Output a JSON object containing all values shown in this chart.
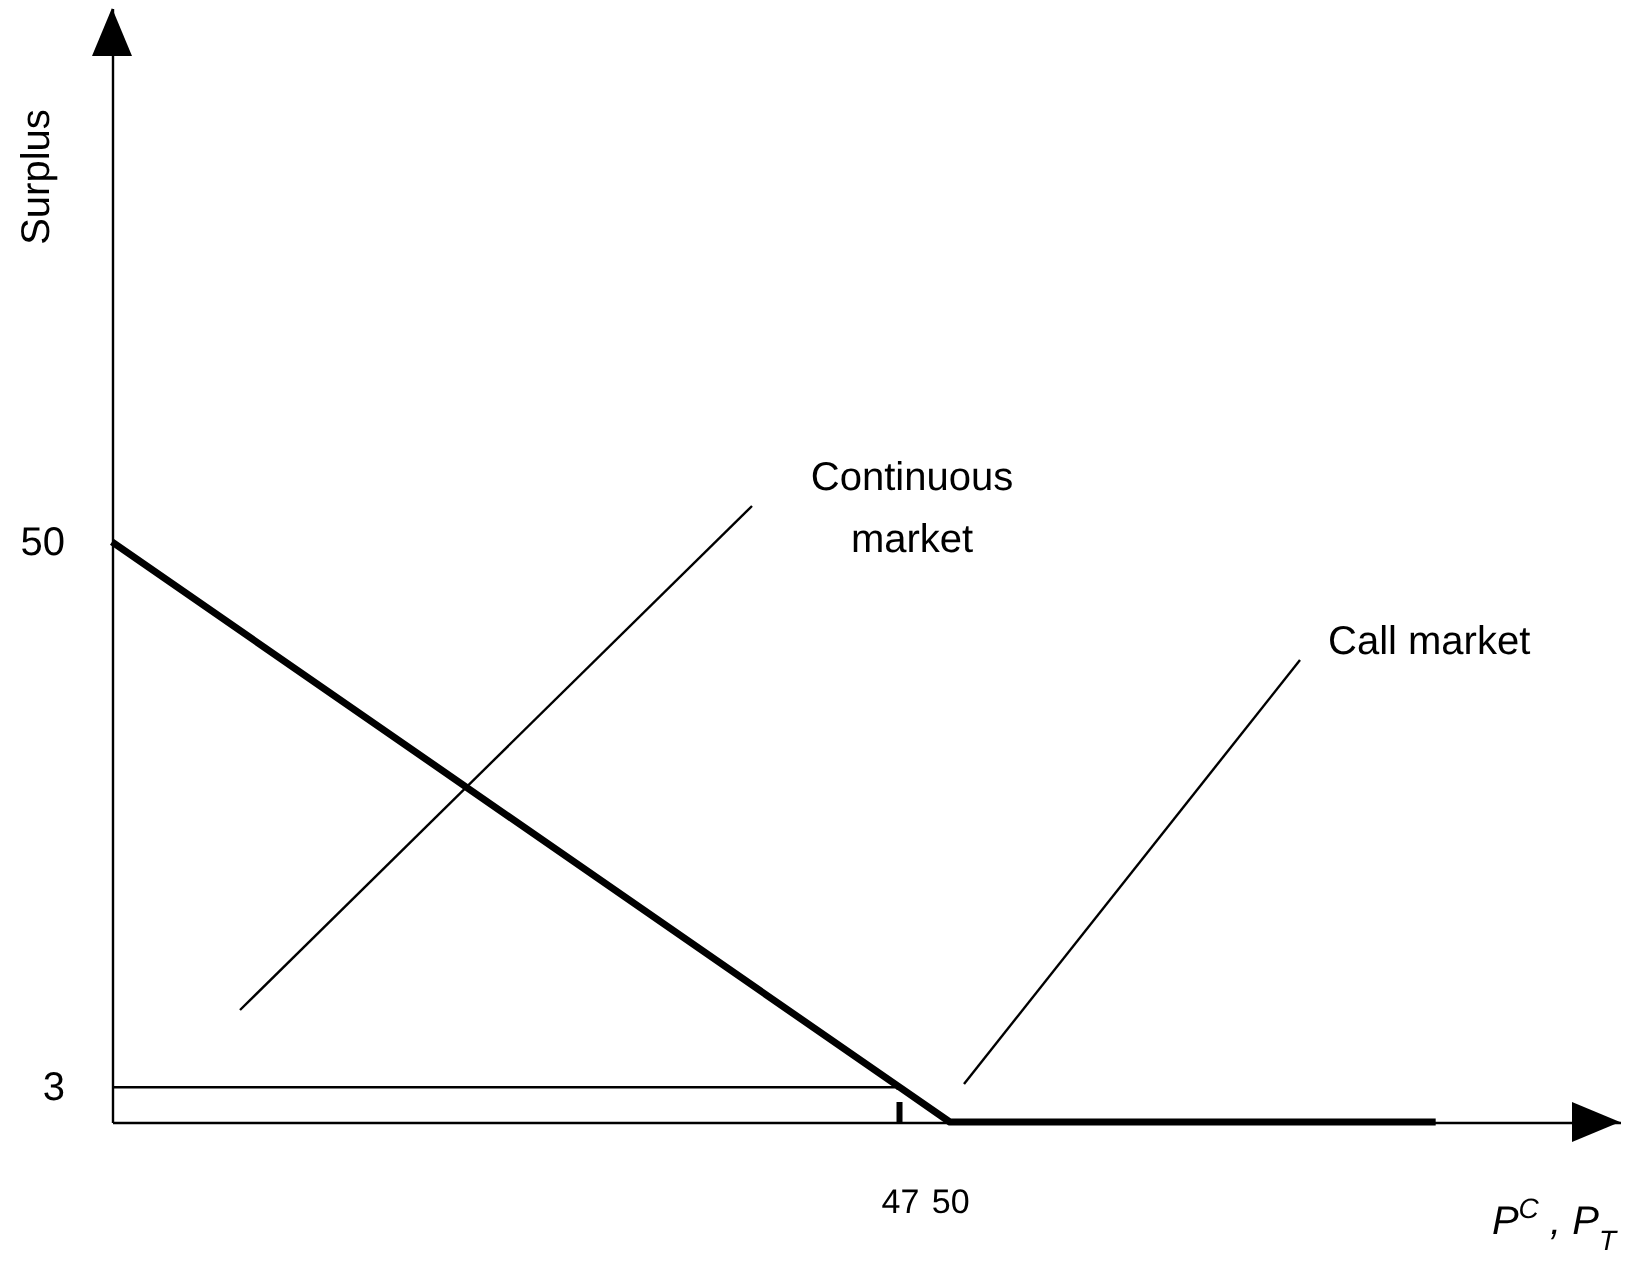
{
  "chart_data": {
    "type": "line",
    "xlabel": "P$^{C}$ , P$_{T}$",
    "ylabel": "Surplus",
    "xlim": [
      0,
      90
    ],
    "ylim": [
      0,
      96
    ],
    "xticks": [
      47,
      50
    ],
    "yticks": [
      3,
      50
    ],
    "grid": false,
    "series": [
      {
        "color": "#000000",
        "x": [
          0,
          47,
          50,
          79
        ],
        "values": [
          50,
          3,
          0,
          0
        ]
      },
      {
        "color": "#000000",
        "x": [
          0,
          47
        ],
        "values": [
          3,
          3
        ]
      },
      {
        "color": "#000000",
        "x": [
          47,
          47
        ],
        "values": [
          0,
          3
        ],
        "line_style": "dashed"
      }
    ],
    "annotations": [
      "Continuous market",
      "Call market"
    ]
  }
}
